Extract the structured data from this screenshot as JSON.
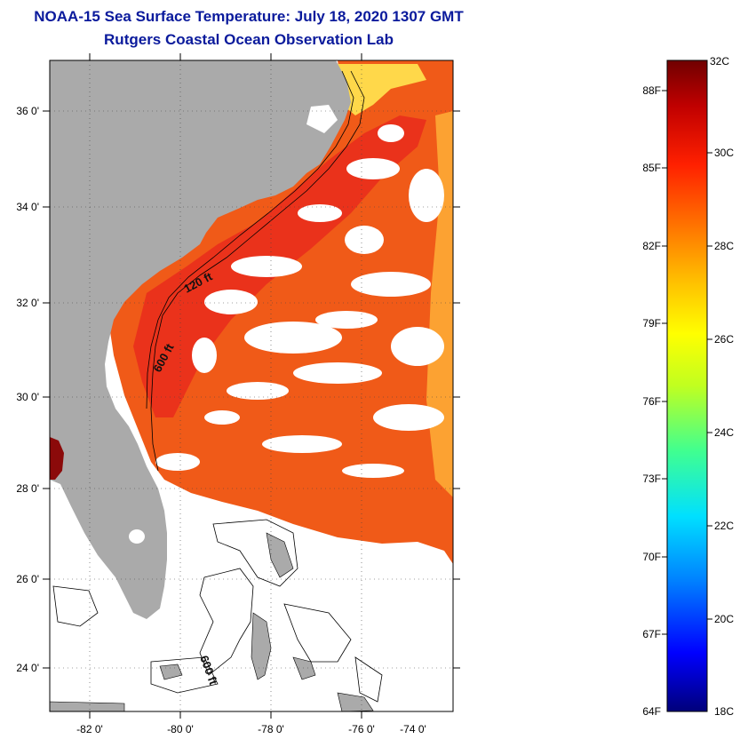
{
  "title": "NOAA-15 Sea Surface Temperature:  July 18, 2020 1307 GMT",
  "subtitle": "Rutgers Coastal Ocean Observation Lab",
  "map": {
    "lat_labels": [
      "36 0'",
      "34 0'",
      "32 0'",
      "30 0'",
      "28 0'",
      "26 0'",
      "24 0'"
    ],
    "lon_labels": [
      "-82 0'",
      "-80 0'",
      "-78 0'",
      "-76 0'",
      "-74 0'"
    ],
    "contour_labels": [
      "120 ft",
      "600 ft",
      "600 ft"
    ],
    "colors": {
      "land": "#aaaaaa",
      "ocean_warm": "#f05a18",
      "ocean_hot": "#e8261c",
      "no_data": "#ffffff"
    }
  },
  "colorbar": {
    "celsius_labels": [
      "32C",
      "30C",
      "28C",
      "26C",
      "24C",
      "22C",
      "20C",
      "18C"
    ],
    "fahrenheit_labels": [
      "88F",
      "85F",
      "82F",
      "79F",
      "76F",
      "73F",
      "70F",
      "67F",
      "64F"
    ],
    "range_celsius": [
      18,
      32
    ],
    "stops": [
      "#00007a",
      "#0000ff",
      "#0080ff",
      "#00e0ff",
      "#40ff90",
      "#c0ff20",
      "#ffff00",
      "#ffc000",
      "#ff7000",
      "#ff2000",
      "#c00000",
      "#700000"
    ]
  }
}
